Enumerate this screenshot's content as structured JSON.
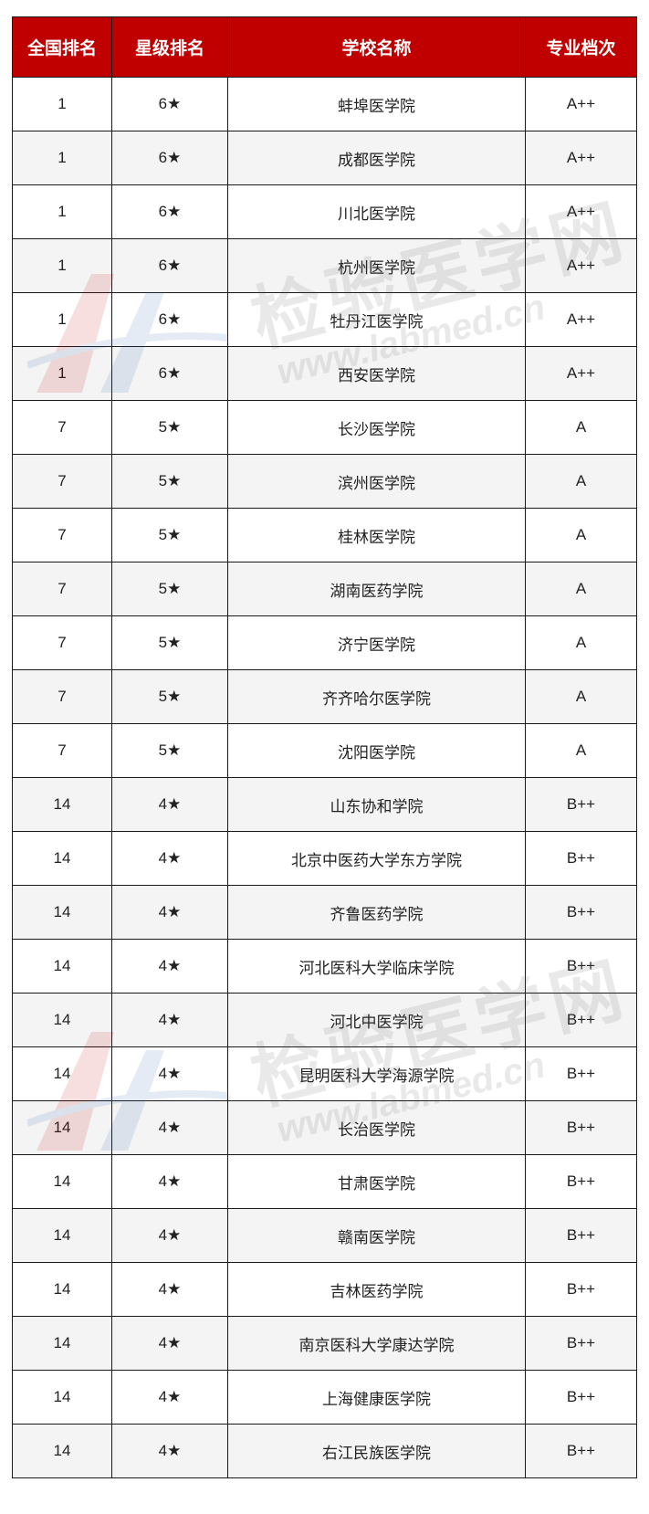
{
  "colors": {
    "header_bg": "#c00000",
    "header_text": "#ffffff",
    "alt_row": "#f2f2f2",
    "border": "#1a1a1a"
  },
  "watermark": {
    "text": "检验医学网",
    "url": "www.labmed.cn"
  },
  "table": {
    "headers": [
      "全国排名",
      "星级排名",
      "学校名称",
      "专业档次"
    ],
    "rows": [
      [
        "1",
        "6★",
        "蚌埠医学院",
        "A++"
      ],
      [
        "1",
        "6★",
        "成都医学院",
        "A++"
      ],
      [
        "1",
        "6★",
        "川北医学院",
        "A++"
      ],
      [
        "1",
        "6★",
        "杭州医学院",
        "A++"
      ],
      [
        "1",
        "6★",
        "牡丹江医学院",
        "A++"
      ],
      [
        "1",
        "6★",
        "西安医学院",
        "A++"
      ],
      [
        "7",
        "5★",
        "长沙医学院",
        "A"
      ],
      [
        "7",
        "5★",
        "滨州医学院",
        "A"
      ],
      [
        "7",
        "5★",
        "桂林医学院",
        "A"
      ],
      [
        "7",
        "5★",
        "湖南医药学院",
        "A"
      ],
      [
        "7",
        "5★",
        "济宁医学院",
        "A"
      ],
      [
        "7",
        "5★",
        "齐齐哈尔医学院",
        "A"
      ],
      [
        "7",
        "5★",
        "沈阳医学院",
        "A"
      ],
      [
        "14",
        "4★",
        "山东协和学院",
        "B++"
      ],
      [
        "14",
        "4★",
        "北京中医药大学东方学院",
        "B++"
      ],
      [
        "14",
        "4★",
        "齐鲁医药学院",
        "B++"
      ],
      [
        "14",
        "4★",
        "河北医科大学临床学院",
        "B++"
      ],
      [
        "14",
        "4★",
        "河北中医学院",
        "B++"
      ],
      [
        "14",
        "4★",
        "昆明医科大学海源学院",
        "B++"
      ],
      [
        "14",
        "4★",
        "长治医学院",
        "B++"
      ],
      [
        "14",
        "4★",
        "甘肃医学院",
        "B++"
      ],
      [
        "14",
        "4★",
        "赣南医学院",
        "B++"
      ],
      [
        "14",
        "4★",
        "吉林医药学院",
        "B++"
      ],
      [
        "14",
        "4★",
        "南京医科大学康达学院",
        "B++"
      ],
      [
        "14",
        "4★",
        "上海健康医学院",
        "B++"
      ],
      [
        "14",
        "4★",
        "右江民族医学院",
        "B++"
      ]
    ]
  }
}
